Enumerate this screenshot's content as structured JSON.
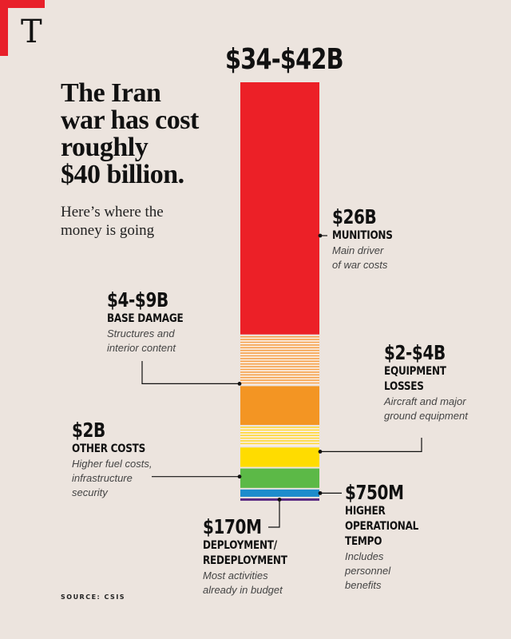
{
  "logo": "T",
  "header": {
    "total_label": "$34-$42B",
    "title_lines": [
      "The Iran",
      "war has cost",
      "roughly",
      "$40 billion."
    ],
    "subtitle_lines": [
      "Here’s where the",
      "money is going"
    ]
  },
  "callouts": {
    "munitions": {
      "value": "$26B",
      "name": "MUNITIONS",
      "desc_lines": [
        "Main driver",
        "of war costs"
      ]
    },
    "base_damage": {
      "value": "$4-$9B",
      "name": "BASE DAMAGE",
      "desc_lines": [
        "Structures and",
        "interior content"
      ]
    },
    "equipment_losses": {
      "value": "$2-$4B",
      "name_lines": [
        "EQUIPMENT",
        "LOSSES"
      ],
      "desc_lines": [
        "Aircraft and major",
        "ground equipment"
      ]
    },
    "other_costs": {
      "value": "$2B",
      "name": "OTHER COSTS",
      "desc_lines": [
        "Higher fuel costs,",
        "infrastructure",
        "security"
      ]
    },
    "operational_tempo": {
      "value": "$750M",
      "name_lines": [
        "HIGHER",
        "OPERATIONAL",
        "TEMPO"
      ],
      "desc_lines": [
        "Includes",
        "personnel",
        "benefits"
      ]
    },
    "deployment": {
      "value": "$170M",
      "name_lines": [
        "DEPLOYMENT/",
        "REDEPLOYMENT"
      ],
      "desc_lines": [
        "Most activities",
        "already in budget"
      ]
    }
  },
  "source": "SOURCE: CSIS",
  "chart_data": {
    "type": "bar",
    "orientation": "stacked-vertical",
    "total_label": "$34-$42B",
    "unit": "billion USD",
    "segments": [
      {
        "category": "MUNITIONS",
        "label": "$26B",
        "value": 26,
        "color": "#ec2027",
        "style": "solid"
      },
      {
        "category": "BASE DAMAGE",
        "label": "$4-$9B",
        "low": 4,
        "high": 9,
        "color": "#f5a04a",
        "style": "range-lines"
      },
      {
        "category": "BASE DAMAGE",
        "label": "$4-$9B",
        "value": 4,
        "color": "#f39523",
        "style": "solid"
      },
      {
        "category": "EQUIPMENT LOSSES",
        "label": "$2-$4B",
        "low": 2,
        "high": 4,
        "color": "#fdd835",
        "style": "range-lines"
      },
      {
        "category": "EQUIPMENT LOSSES",
        "label": "$2-$4B",
        "value": 2,
        "color": "#ffdc00",
        "style": "solid"
      },
      {
        "category": "OTHER COSTS",
        "label": "$2B",
        "value": 2,
        "color": "#5cb947",
        "style": "solid"
      },
      {
        "category": "HIGHER OPERATIONAL TEMPO",
        "label": "$750M",
        "value": 0.75,
        "color": "#1d8ccc",
        "style": "solid"
      },
      {
        "category": "DEPLOYMENT/REDEPLOYMENT",
        "label": "$170M",
        "value": 0.17,
        "color": "#5a2a82",
        "style": "solid"
      }
    ]
  }
}
